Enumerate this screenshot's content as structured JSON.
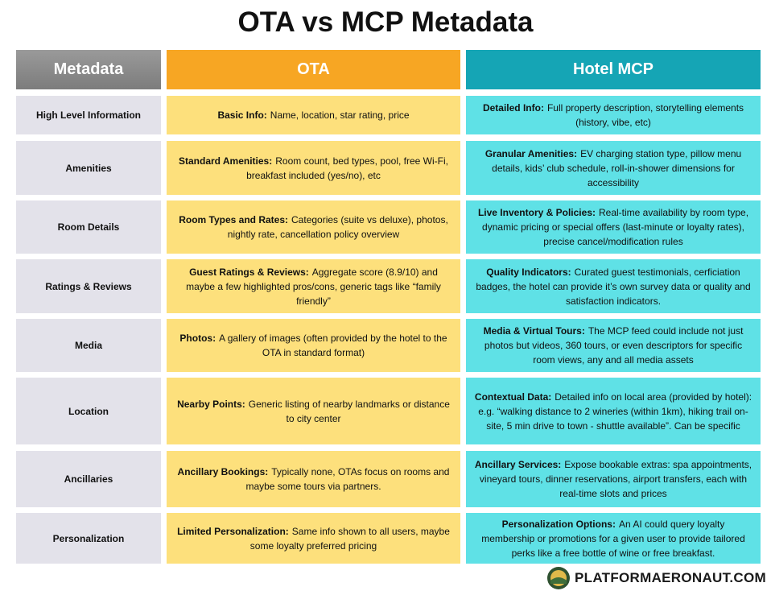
{
  "header": {
    "title": "OTA vs MCP Metadata"
  },
  "table": {
    "columns": [
      "Metadata",
      "OTA",
      "Hotel MCP"
    ],
    "rows": [
      {
        "label": "High Level Information",
        "ota": {
          "bold": "Basic Info:",
          "text": "Name, location, star rating, price"
        },
        "mcp": {
          "bold": "Detailed Info:",
          "text": "Full property description, storytelling elements (history, vibe, etc)"
        }
      },
      {
        "label": "Amenities",
        "ota": {
          "bold": "Standard Amenities:",
          "text": "Room count, bed types, pool, free Wi-Fi, breakfast included (yes/no), etc"
        },
        "mcp": {
          "bold": "Granular Amenities:",
          "text": "EV charging station type, pillow menu details, kids’ club schedule, roll-in-shower dimensions for accessibility"
        }
      },
      {
        "label": "Room Details",
        "ota": {
          "bold": "Room Types and Rates:",
          "text": "Categories (suite vs deluxe), photos, nightly rate, cancellation policy overview"
        },
        "mcp": {
          "bold": "Live Inventory & Policies:",
          "text": "Real-time availability by room type, dynamic pricing or special offers (last-minute or loyalty rates), precise cancel/modification rules"
        }
      },
      {
        "label": "Ratings & Reviews",
        "ota": {
          "bold": "Guest Ratings & Reviews:",
          "text": "Aggregate score (8.9/10) and maybe a few highlighted pros/cons, generic tags like “family friendly”"
        },
        "mcp": {
          "bold": "Quality Indicators:",
          "text": "Curated guest testimonials, cerficiation badges, the hotel can provide it’s own survey data or quality and satisfaction indicators."
        }
      },
      {
        "label": "Media",
        "ota": {
          "bold": "Photos:",
          "text": "A gallery of images (often provided by the hotel to the OTA in standard format)"
        },
        "mcp": {
          "bold": "Media & Virtual Tours:",
          "text": "The MCP feed could include not just photos but videos, 360 tours, or even descriptors for specific room views, any and all media assets"
        }
      },
      {
        "label": "Location",
        "ota": {
          "bold": "Nearby Points:",
          "text": "Generic listing of nearby landmarks or distance to city center"
        },
        "mcp": {
          "bold": "Contextual Data:",
          "text": "Detailed info on local area (provided by hotel): e.g. “walking distance to 2 wineries (within 1km), hiking trail on-site, 5 min drive to town - shuttle available”. Can be specific"
        }
      },
      {
        "label": "Ancillaries",
        "ota": {
          "bold": "Ancillary Bookings:",
          "text": "Typically none, OTAs focus on rooms and maybe some tours via partners."
        },
        "mcp": {
          "bold": "Ancillary Services:",
          "text": "Expose bookable extras: spa appointments, vineyard tours, dinner reservations, airport transfers, each with real-time slots and prices"
        }
      },
      {
        "label": "Personalization",
        "ota": {
          "bold": "Limited Personalization:",
          "text": "Same info shown to all users, maybe some loyalty preferred pricing"
        },
        "mcp": {
          "bold": "Personalization Options:",
          "text": "An AI could query loyalty membership or promotions for a given user to provide tailored perks like a free bottle of wine or free breakfast."
        }
      }
    ]
  },
  "footer": {
    "brand": "PLATFORMAERONAUT.COM"
  }
}
